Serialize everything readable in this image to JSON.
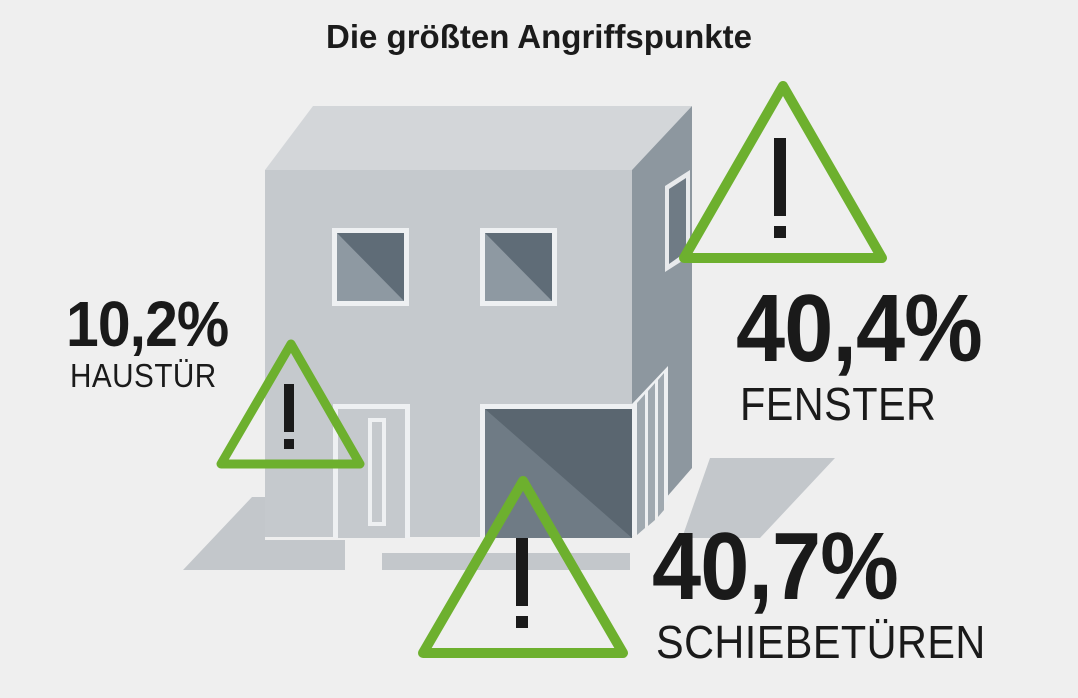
{
  "title": "Die größten Angriffspunkte",
  "colors": {
    "background": "#efefef",
    "warning_green": "#6db02e",
    "house_front": "#c5c9cd",
    "house_side": "#8d979f",
    "house_roof": "#d3d6d9",
    "window_dark": "#5f6c77"
  },
  "stats": {
    "haustuer": {
      "value": "10,2%",
      "label": "HAUSTÜR"
    },
    "fenster": {
      "value": "40,4%",
      "label": "FENSTER"
    },
    "schiebetueren": {
      "value": "40,7%",
      "label": "SCHIEBETÜREN"
    }
  },
  "warning_icon": {
    "glyph": "!",
    "name": "warning-triangle-icon"
  }
}
